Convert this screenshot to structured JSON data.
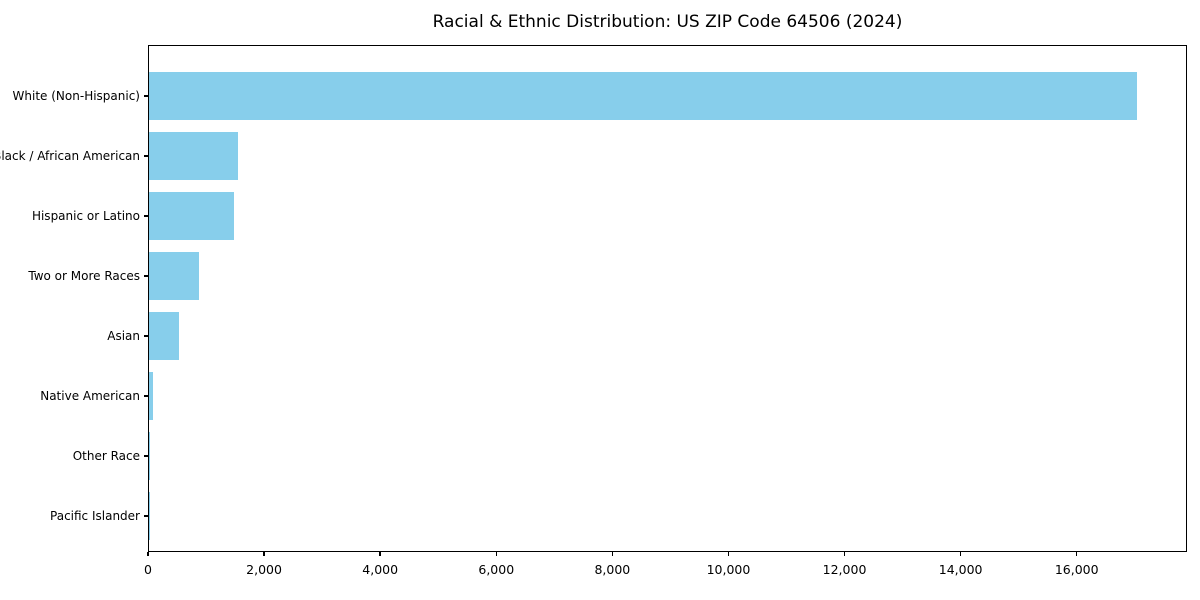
{
  "figure": {
    "title": "Racial & Ethnic Distribution: US ZIP Code 64506 (2024)"
  },
  "chart_data": {
    "type": "bar",
    "orientation": "horizontal",
    "title": "Racial & Ethnic Distribution: US ZIP Code 64506 (2024)",
    "categories": [
      "White (Non-Hispanic)",
      "Black / African American",
      "Hispanic or Latino",
      "Two or More Races",
      "Asian",
      "Native American",
      "Other Race",
      "Pacific Islander"
    ],
    "values": [
      17060,
      1530,
      1465,
      865,
      520,
      70,
      15,
      8
    ],
    "xlabel": "",
    "ylabel": "",
    "xlim": [
      0,
      17900
    ],
    "x_tick_values": [
      0,
      2000,
      4000,
      6000,
      8000,
      10000,
      12000,
      14000,
      16000
    ],
    "x_tick_labels": [
      "0",
      "2,000",
      "4,000",
      "6,000",
      "8,000",
      "10,000",
      "12,000",
      "14,000",
      "16,000"
    ],
    "bar_color": "#87CEEB",
    "background_color": "#ffffff",
    "grid": false,
    "legend": false,
    "sort": "descending top-to-bottom"
  }
}
